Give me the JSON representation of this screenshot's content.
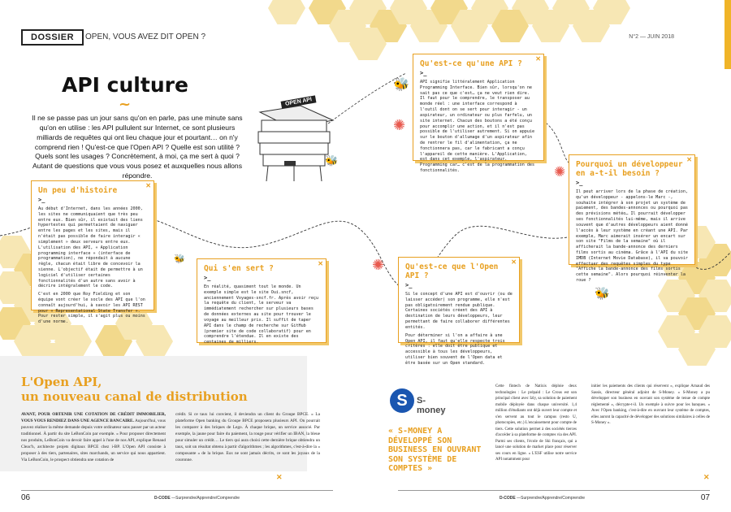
{
  "header": {
    "section": "DOSSIER",
    "rubrique": "OPEN, VOUS AVEZ DIT OPEN ?",
    "issue": "N°2 — JUIN 2018"
  },
  "title": "API culture",
  "signpost": "OPEN API",
  "intro": "Il ne se passe pas un jour sans qu'on en parle, pas une minute sans qu'on en utilise : les API pullulent sur Internet, ce sont plusieurs milliards de requêtes qui ont lieu chaque jour et pourtant… on n'y comprend rien ! Qu'est-ce que l'Open API ? Quelle est son utilité ? Quels sont les usages ? Concrètement, à moi, ça me sert à quoi ? Autant de questions que vous vous posez et auxquelles nous allons répondre.",
  "boxes": {
    "quest_api": {
      "title": "Qu'est-ce qu'une API ?",
      "text": "API signifie littéralement Application Programming Interface. Bien sûr, lorsqu'on ne sait pas ce que c'est… ça ne veut rien dire. Il faut pour le comprendre, le transposer au monde réel : une interface correspond à l'outil dont on se sert pour interagir - un aspirateur, un ordinateur ou plus farfelu, un site internet. Chacun des boutons a été conçu pour accomplir une action, et il n'est pas possible de l'utiliser autrement. Si on appuie sur le bouton d'allumage d'un aspirateur afin de rentrer le fil d'alimentation, ça ne fonctionnera pas, car le fabricant a conçu l'appareil de cette manière. L'Application, est dans cet exemple, l'aspirateur. Programming car… c'est de la programmation des fonctionnalités."
    },
    "histoire": {
      "title": "Un peu d'histoire",
      "p1": "Au début d'Internet, dans les années 2000, les sites ne communiquaient que très peu entre eux. Bien sûr, il existait des liens hypertextes qui permettaient de naviguer entre les pages et les sites, mais il n'était pas possible de faire interagir « simplement » deux serveurs entre eux. L'utilisation des API, « Application programming interface » (interface de programmation), ne répondait à aucune règle, chacun était libre de concevoir la sienne. L'objectif était de permettre à un logiciel d'utiliser certaines fonctionnalités d'un autre sans avoir à décrire intégralement le code.",
      "p2": "C'est en 2000 que Roy Fielding et son équipe vont créer le socle des API que l'on connaît aujourd'hui, à savoir les API REST pour « Representational State Transfer ». Pour rester simple, il s'agit plus ou moins d'une norme."
    },
    "qui_sert": {
      "title": "Qui s'en sert ?",
      "text": "En réalité, quasiment tout le monde. Un exemple simple est le site Oui.sncf, anciennement Voyages-sncf.fr. Après avoir reçu la requête du client, le serveur va immédiatement rechercher sur plusieurs bases de données externes au site pour trouver le voyage au meilleur prix. Il suffit de taper API dans le champ de recherche sur GitHub (premier site de code collaboratif) pour en comprendre l'étendue. Il en existe des centaines de milliers."
    },
    "open_api": {
      "title": "Qu'est-ce que l'Open API ?",
      "p1": "Si le concept d'une API est d'ouvrir (ou de laisser accéder) son programme, elle n'est pas obligatoirement rendue publique. Certaines sociétés créent des API à destination de leurs développeurs, leur permettant de faire collaborer différentes entités.",
      "p2": "Pour déterminer si l'on a affaire à une Open API, il faut qu'elle respecte trois critères : elle doit être publique et accessible à tous les développeurs, utiliser bien souvent de l'Open data et être basée sur un Open standard."
    },
    "pourquoi": {
      "title": "Pourquoi un développeur en a-t-il besoin ?",
      "text": "Il peut arriver lors de la phase de création, qu'un développeur - appelons-le Marc -, souhaite intégrer à son projet un système de paiement, des bandes-annonces ou pourquoi pas des prévisions météo… Il pourrait développer ses fonctionnalités lui-même, mais il arrive souvent que d'autres développeurs aient donné l'accès à leur système en créant une API. Par exemple, Marc aimerait insérer un encart sur son site \"Films de la semaine\" où il afficherait la bande-annonce des derniers films sortis au cinéma. Grâce à l'API du site IMDB (Internet Movie Database), il va pouvoir effectuer des requêtes simples du type \"Affiche la bande-annonce des films sortis cette semaine\". Alors pourquoi réinventer la roue ?"
    }
  },
  "article": {
    "title_line1": "L'Open API,",
    "title_line2": "un nouveau canal de distribution",
    "lead": "AVANT, POUR OBTENIR UNE COTATION DE CRÉDIT IMMOBILIER, VOUS VOUS RENDIEZ DANS UNE AGENCE BANCAIRE.",
    "col1": "Aujourd'hui, vous pouvez réaliser la même demande depuis votre ordinateur sans passer par un acteur traditionnel. À partir du site LeBonCoin par exemple. « Pour proposer directement nos produits, LeBonCoin va devoir faire appel à l'une de nos API, explique Renaud Cleac'h, architecte projets digitaux BPCE chez i-BP. L'Open API consiste à proposer à des tiers, partenaires, sites marchands, un service qui nous appartient. Via LeBonCoin, le prospect obtiendra une cotation de",
    "col2": "crédit. Si ce taux lui convient, il deviendra un client du Groupe BPCE. » La plateforme Open banking du Groupe BPCE proposera plusieurs API. On pourrait les comparer à des briques de Lego. À chaque brique, un service associé. Par exemple, la jaune pour faire du paiement, la rouge pour vérifier un IBAN, la bleue pour simuler un crédit… Le tiers qui aura choisi cette dernière brique obtiendra un taux, soit un résultat obtenu à partir d'algorithmes ; les algorithmes, c'est-à-dire la « composante » de la brique. Eux ne sont jamais décrits, ce sont les joyaux de la couronne.",
    "smoney": "S-money",
    "quote": "« S-MONEY A DÉVELOPPÉ SON BUSINESS EN OUVRANT SON SYSTÈME DE COMPTES »",
    "col3": "Cette fintech de Natixis déploie deux technologies : Le prépaid : Le Crous est son principal client avec Izly, sa solution de paiement mobile déployée dans chaque université. 1,4 million d'étudiants ont déjà ouvert leur compte et s'en servent au tout le campus (resto U, photocopies, etc.) L'encaissement pour compte de tiers. Cette solution permet à des sociétés tierces d'accéder à sa plateforme de comptes via des API. Parmi ses clients, l'école de Ski français, qui a lancé une solution de market place pour réserver ses cours en ligne. « L'ESF utilise notre service API notamment pour",
    "col4": "initier les paiements des clients qui réservent », explique Arnaud des Sassis, directeur général adjoint de S-Money. « S-Money a pu développer son business en ouvrant son système de tenue de compte réglementé », décrypte-t-il. Un exemple à suivre pour les banques. « Avec l'Open banking, c'est-à-dire en ouvrant leur système de comptes, elles auront la capacité de développer des solutions similaires à celles de S-Money »."
  },
  "footer": {
    "left_page": "06",
    "right_page": "07",
    "brand": "D-CODE",
    "tagline": "—Surprendre/Apprendre/Comprendre"
  },
  "colors": {
    "accent": "#e8a020",
    "honey": "#f7e7b4",
    "smoney_blue": "#1a56b0"
  },
  "icons": [
    "bee-icon",
    "flower-icon",
    "beehive-icon",
    "close-icon",
    "smoney-logo-icon"
  ]
}
